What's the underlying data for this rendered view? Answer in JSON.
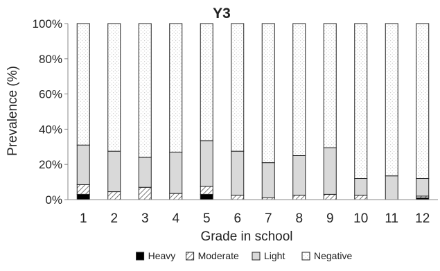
{
  "chart_data": {
    "type": "bar",
    "stacked": true,
    "title": "Y3",
    "xlabel": "Grade in school",
    "ylabel": "Prevalence (%)",
    "ylim": [
      0,
      100
    ],
    "yticks": [
      "0%",
      "20%",
      "40%",
      "60%",
      "80%",
      "100%"
    ],
    "categories": [
      "1",
      "2",
      "3",
      "4",
      "5",
      "6",
      "7",
      "8",
      "9",
      "10",
      "11",
      "12"
    ],
    "legend_position": "bottom",
    "series": [
      {
        "name": "Heavy",
        "pattern": "solid-black",
        "values": [
          3,
          0,
          0,
          0,
          3,
          0,
          0,
          0,
          0,
          0,
          0,
          1
        ]
      },
      {
        "name": "Moderate",
        "pattern": "diagonal-hatch",
        "values": [
          5.5,
          4.5,
          7,
          3.5,
          4.5,
          2.5,
          1,
          2.5,
          3,
          2.5,
          0,
          1
        ]
      },
      {
        "name": "Light",
        "pattern": "light-gray",
        "values": [
          22.5,
          23,
          17,
          23.5,
          26,
          25,
          20,
          22.5,
          26.5,
          9.5,
          13.5,
          10
        ]
      },
      {
        "name": "Negative",
        "pattern": "dotted-white",
        "values": [
          69,
          72.5,
          76,
          73,
          66.5,
          72.5,
          79,
          75,
          70.5,
          88,
          86.5,
          88
        ]
      }
    ]
  }
}
